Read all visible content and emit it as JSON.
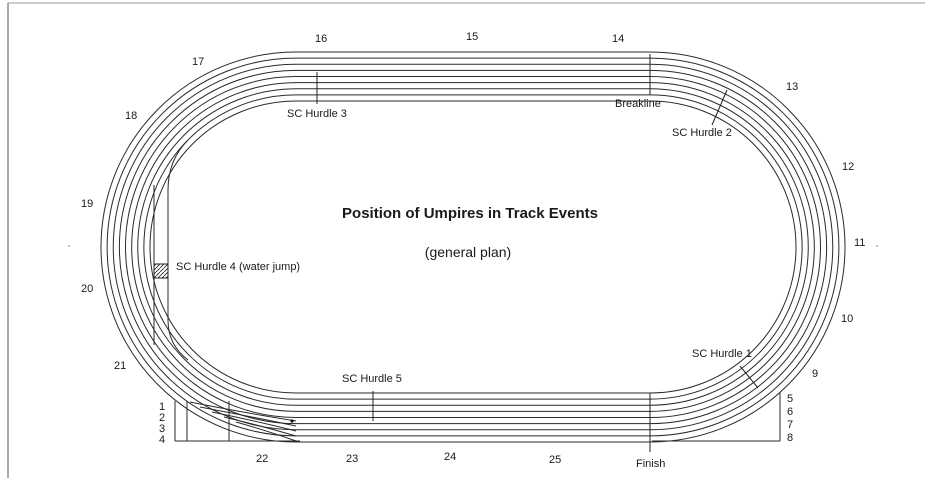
{
  "title": "Position of Umpires in Track Events",
  "subtitle": "(general plan)",
  "umpire_positions": [
    "5",
    "6",
    "7",
    "8",
    "9",
    "10",
    "11",
    "12",
    "13",
    "14",
    "15",
    "16",
    "17",
    "18",
    "19",
    "20",
    "21",
    "22",
    "23",
    "24",
    "25"
  ],
  "lane_numbers_left": [
    "1",
    "2",
    "3",
    "4"
  ],
  "features": {
    "breakline": "Breakline",
    "finish": "Finish",
    "hurdle1": "SC Hurdle 1",
    "hurdle2": "SC Hurdle 2",
    "hurdle3": "SC Hurdle 3",
    "hurdle4": "SC Hurdle 4 (water jump)",
    "hurdle5": "SC Hurdle 5"
  }
}
